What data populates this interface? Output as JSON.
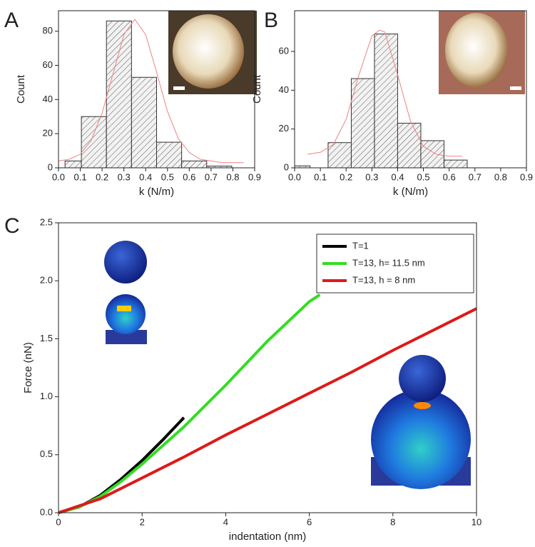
{
  "chart_data": [
    {
      "type": "histogram",
      "panel": "A",
      "xlabel": "k (N/m)",
      "ylabel": "Count",
      "bins": [
        0.03,
        0.105,
        0.22,
        0.335,
        0.45,
        0.565,
        0.68,
        0.795
      ],
      "counts": [
        4,
        30,
        86,
        53,
        15,
        4,
        1
      ],
      "color": "#555555",
      "fit": {
        "x": [
          0.0,
          0.05,
          0.1,
          0.15,
          0.2,
          0.25,
          0.3,
          0.35,
          0.4,
          0.45,
          0.5,
          0.55,
          0.6,
          0.65,
          0.7,
          0.75,
          0.8,
          0.85
        ],
        "values": [
          4,
          5,
          8,
          16,
          32,
          55,
          78,
          87,
          78,
          56,
          33,
          17,
          9,
          5,
          4,
          3,
          3,
          3
        ],
        "color": "#f08080"
      },
      "xlim": [
        0,
        0.9
      ],
      "xticks": [
        {
          "value": 0,
          "label": "0.0"
        },
        0.1,
        0.2,
        0.3,
        0.4,
        0.5,
        0.6,
        0.7,
        0.8,
        0.9
      ],
      "ylim": [
        0,
        92
      ],
      "yticks": [
        0,
        20,
        40,
        60,
        80
      ]
    },
    {
      "type": "histogram",
      "panel": "B",
      "xlabel": "k (N/m)",
      "ylabel": "Count",
      "bins": [
        0.0,
        0.06,
        0.13,
        0.22,
        0.31,
        0.4,
        0.49,
        0.58,
        0.67
      ],
      "counts": [
        1,
        0,
        13,
        46,
        69,
        23,
        14,
        4
      ],
      "color": "#555555",
      "fit": {
        "x": [
          0.05,
          0.1,
          0.15,
          0.2,
          0.25,
          0.3,
          0.33,
          0.35,
          0.4,
          0.45,
          0.5,
          0.55,
          0.6,
          0.65
        ],
        "values": [
          7,
          8,
          12,
          25,
          48,
          68,
          71,
          70,
          48,
          24,
          11,
          7,
          6,
          6
        ],
        "color": "#f08080"
      },
      "xlim": [
        0,
        0.9
      ],
      "xticks": [
        {
          "value": 0,
          "label": "0.0"
        },
        0.1,
        0.2,
        0.3,
        0.4,
        0.5,
        0.6,
        0.7,
        0.8,
        0.9
      ],
      "ylim": [
        0,
        81
      ],
      "yticks": [
        0,
        20,
        40,
        60
      ]
    },
    {
      "type": "line",
      "panel": "C",
      "xlabel": "indentation (nm)",
      "ylabel": "Force (nN)",
      "legend": "upper right",
      "series": [
        {
          "name": "T=1",
          "color": "#000000",
          "x": [
            0,
            0.5,
            1,
            1.5,
            2,
            2.5,
            3
          ],
          "values": [
            0,
            0.05,
            0.15,
            0.29,
            0.45,
            0.63,
            0.82
          ]
        },
        {
          "name": "T=13, h= 11.5 nm",
          "color": "#33dd22",
          "x": [
            0,
            0.5,
            1,
            1.5,
            2,
            3,
            4,
            5,
            6,
            6.25
          ],
          "values": [
            0,
            0.05,
            0.14,
            0.27,
            0.42,
            0.74,
            1.1,
            1.48,
            1.82,
            1.88
          ]
        },
        {
          "name": "T=13, h = 8 nm",
          "color": "#dd1a1a",
          "x": [
            0,
            1,
            2,
            3,
            4,
            5,
            6,
            7,
            8,
            9,
            10
          ],
          "values": [
            0,
            0.12,
            0.3,
            0.48,
            0.67,
            0.85,
            1.03,
            1.21,
            1.4,
            1.58,
            1.76
          ]
        }
      ],
      "xlim": [
        0,
        10
      ],
      "xticks": [
        0,
        2,
        4,
        6,
        8,
        10
      ],
      "ylim": [
        0,
        2.5
      ],
      "yticks": [
        {
          "value": 0,
          "label": "0.0"
        },
        0.5,
        {
          "value": 1,
          "label": "1.0"
        },
        1.5,
        {
          "value": 2,
          "label": "2.0"
        },
        2.5
      ]
    }
  ]
}
